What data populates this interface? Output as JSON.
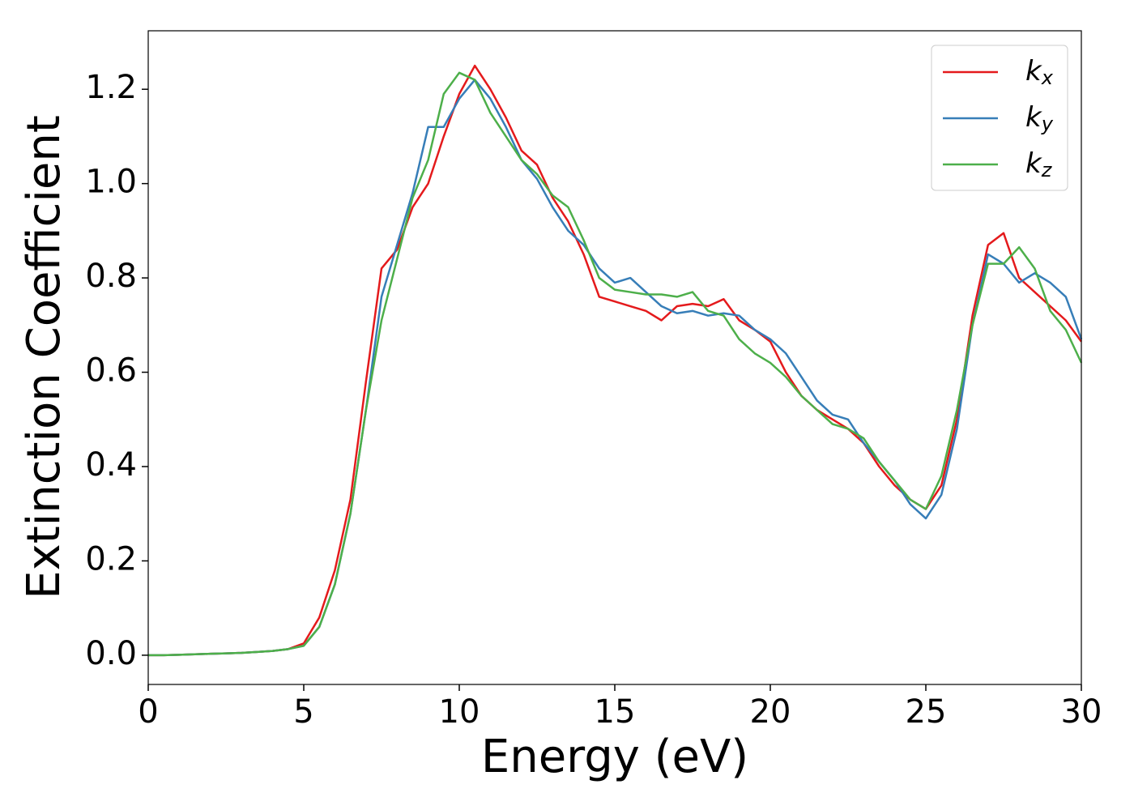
{
  "chart_data": {
    "type": "line",
    "xlabel": "Energy (eV)",
    "ylabel": "Extinction Coefficient",
    "x": [
      0,
      0.5,
      1,
      1.5,
      2,
      2.5,
      3,
      3.5,
      4,
      4.5,
      5,
      5.5,
      6,
      6.5,
      7,
      7.5,
      8,
      8.5,
      9,
      9.5,
      10,
      10.5,
      11,
      11.5,
      12,
      12.5,
      13,
      13.5,
      14,
      14.5,
      15,
      15.5,
      16,
      16.5,
      17,
      17.5,
      18,
      18.5,
      19,
      19.5,
      20,
      20.5,
      21,
      21.5,
      22,
      22.5,
      23,
      23.5,
      24,
      24.5,
      25,
      25.5,
      26,
      26.5,
      27,
      27.5,
      28,
      28.5,
      29,
      29.5,
      30
    ],
    "series": [
      {
        "name": "kx",
        "color": "#e41a1c",
        "values": [
          0,
          0,
          0.001,
          0.002,
          0.003,
          0.004,
          0.005,
          0.007,
          0.009,
          0.013,
          0.025,
          0.08,
          0.18,
          0.33,
          0.58,
          0.82,
          0.86,
          0.95,
          1.0,
          1.1,
          1.19,
          1.25,
          1.2,
          1.14,
          1.07,
          1.04,
          0.97,
          0.92,
          0.85,
          0.76,
          0.75,
          0.74,
          0.73,
          0.71,
          0.74,
          0.745,
          0.74,
          0.755,
          0.71,
          0.69,
          0.665,
          0.6,
          0.55,
          0.52,
          0.5,
          0.48,
          0.45,
          0.4,
          0.36,
          0.33,
          0.31,
          0.36,
          0.5,
          0.72,
          0.87,
          0.895,
          0.8,
          0.77,
          0.74,
          0.71,
          0.665
        ]
      },
      {
        "name": "ky",
        "color": "#377eb8",
        "values": [
          0,
          0,
          0.001,
          0.002,
          0.003,
          0.004,
          0.005,
          0.007,
          0.009,
          0.013,
          0.02,
          0.06,
          0.15,
          0.3,
          0.52,
          0.76,
          0.87,
          0.98,
          1.12,
          1.12,
          1.18,
          1.22,
          1.18,
          1.12,
          1.05,
          1.01,
          0.95,
          0.9,
          0.87,
          0.82,
          0.79,
          0.8,
          0.77,
          0.74,
          0.725,
          0.73,
          0.72,
          0.725,
          0.72,
          0.69,
          0.67,
          0.64,
          0.59,
          0.54,
          0.51,
          0.5,
          0.45,
          0.41,
          0.37,
          0.32,
          0.29,
          0.34,
          0.48,
          0.7,
          0.85,
          0.83,
          0.79,
          0.81,
          0.79,
          0.76,
          0.67
        ]
      },
      {
        "name": "kz",
        "color": "#4daf4a",
        "values": [
          0,
          0,
          0.001,
          0.002,
          0.003,
          0.004,
          0.005,
          0.007,
          0.009,
          0.013,
          0.02,
          0.06,
          0.15,
          0.3,
          0.52,
          0.71,
          0.84,
          0.97,
          1.05,
          1.19,
          1.235,
          1.22,
          1.15,
          1.1,
          1.05,
          1.02,
          0.975,
          0.95,
          0.88,
          0.8,
          0.775,
          0.77,
          0.765,
          0.765,
          0.76,
          0.77,
          0.73,
          0.72,
          0.67,
          0.64,
          0.62,
          0.59,
          0.55,
          0.52,
          0.49,
          0.48,
          0.46,
          0.41,
          0.37,
          0.33,
          0.31,
          0.38,
          0.52,
          0.7,
          0.83,
          0.83,
          0.865,
          0.82,
          0.73,
          0.69,
          0.62
        ]
      }
    ],
    "xlim": [
      0,
      30
    ],
    "xticks": [
      0,
      5,
      10,
      15,
      20,
      25,
      30
    ],
    "ylim": [
      -0.062,
      1.324
    ],
    "yticks": [
      {
        "value": 0,
        "label": "0.0"
      },
      0.2,
      0.4,
      0.6,
      0.8,
      {
        "value": 1,
        "label": "1.0"
      },
      1.2
    ],
    "legend": "upper right",
    "grid": false
  }
}
